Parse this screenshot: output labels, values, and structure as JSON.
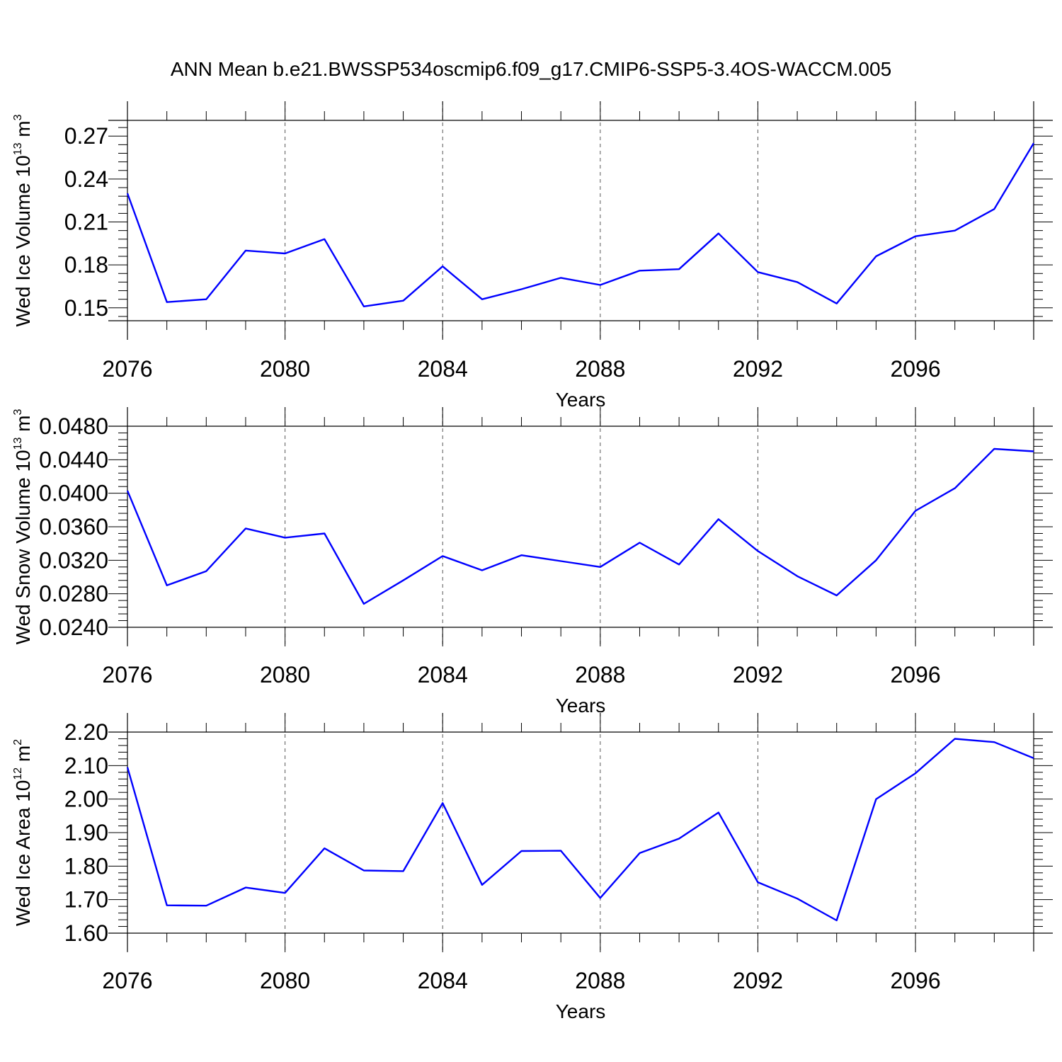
{
  "title": "ANN Mean b.e21.BWSSP534oscmip6.f09_g17.CMIP6-SSP5-3.4OS-WACCM.005",
  "colors": {
    "line": "#0000ff",
    "axis": "#000000",
    "grid": "#555555"
  },
  "chart_data": [
    {
      "type": "line",
      "ylabel": {
        "main": "Wed Ice Volume 10",
        "exp": "13",
        "unit": " m",
        "unit_exp": "3"
      },
      "xlabel": "Years",
      "xlim": [
        2076,
        2099
      ],
      "ylim": [
        0.141,
        0.281
      ],
      "xticks": [
        2076,
        2080,
        2084,
        2088,
        2092,
        2096
      ],
      "xtick_labels": [
        "2076",
        "2080",
        "2084",
        "2088",
        "2092",
        "2096"
      ],
      "yticks": [
        0.15,
        0.18,
        0.21,
        0.24,
        0.27
      ],
      "ytick_labels": [
        "0.15",
        "0.18",
        "0.21",
        "0.24",
        "0.27"
      ],
      "x": [
        2076,
        2077,
        2078,
        2079,
        2080,
        2081,
        2082,
        2083,
        2084,
        2085,
        2086,
        2087,
        2088,
        2089,
        2090,
        2091,
        2092,
        2093,
        2094,
        2095,
        2096,
        2097,
        2098,
        2099
      ],
      "values": [
        0.23,
        0.154,
        0.156,
        0.19,
        0.188,
        0.198,
        0.151,
        0.155,
        0.179,
        0.156,
        0.163,
        0.171,
        0.166,
        0.176,
        0.177,
        0.202,
        0.175,
        0.168,
        0.153,
        0.186,
        0.2,
        0.204,
        0.219,
        0.265
      ]
    },
    {
      "type": "line",
      "ylabel": {
        "main": "Wed Snow Volume 10",
        "exp": "13",
        "unit": " m",
        "unit_exp": "3"
      },
      "xlabel": "Years",
      "xlim": [
        2076,
        2099
      ],
      "ylim": [
        0.024,
        0.048
      ],
      "xticks": [
        2076,
        2080,
        2084,
        2088,
        2092,
        2096
      ],
      "xtick_labels": [
        "2076",
        "2080",
        "2084",
        "2088",
        "2092",
        "2096"
      ],
      "yticks": [
        0.024,
        0.028,
        0.032,
        0.036,
        0.04,
        0.044,
        0.048
      ],
      "ytick_labels": [
        "0.0240",
        "0.0280",
        "0.0320",
        "0.0360",
        "0.0400",
        "0.0440",
        "0.0480"
      ],
      "x": [
        2076,
        2077,
        2078,
        2079,
        2080,
        2081,
        2082,
        2083,
        2084,
        2085,
        2086,
        2087,
        2088,
        2089,
        2090,
        2091,
        2092,
        2093,
        2094,
        2095,
        2096,
        2097,
        2098,
        2099
      ],
      "values": [
        0.0403,
        0.029,
        0.0307,
        0.0358,
        0.0347,
        0.0352,
        0.0268,
        0.0296,
        0.0325,
        0.0308,
        0.0326,
        0.0319,
        0.0312,
        0.0341,
        0.0315,
        0.0369,
        0.0331,
        0.0301,
        0.0278,
        0.032,
        0.0379,
        0.0406,
        0.0453,
        0.045
      ]
    },
    {
      "type": "line",
      "ylabel": {
        "main": "Wed Ice Area 10",
        "exp": "12",
        "unit": " m",
        "unit_exp": "2"
      },
      "xlabel": "Years",
      "xlim": [
        2076,
        2099
      ],
      "ylim": [
        1.6,
        2.2
      ],
      "xticks": [
        2076,
        2080,
        2084,
        2088,
        2092,
        2096
      ],
      "xtick_labels": [
        "2076",
        "2080",
        "2084",
        "2088",
        "2092",
        "2096"
      ],
      "yticks": [
        1.6,
        1.7,
        1.8,
        1.9,
        2.0,
        2.1,
        2.2
      ],
      "ytick_labels": [
        "1.60",
        "1.70",
        "1.80",
        "1.90",
        "2.00",
        "2.10",
        "2.20"
      ],
      "x": [
        2076,
        2077,
        2078,
        2079,
        2080,
        2081,
        2082,
        2083,
        2084,
        2085,
        2086,
        2087,
        2088,
        2089,
        2090,
        2091,
        2092,
        2093,
        2094,
        2095,
        2096,
        2097,
        2098,
        2099
      ],
      "values": [
        2.095,
        1.683,
        1.682,
        1.736,
        1.72,
        1.853,
        1.787,
        1.785,
        1.988,
        1.744,
        1.845,
        1.846,
        1.705,
        1.839,
        1.882,
        1.96,
        1.752,
        1.703,
        1.638,
        2.0,
        2.077,
        2.18,
        2.17,
        2.122
      ]
    }
  ]
}
